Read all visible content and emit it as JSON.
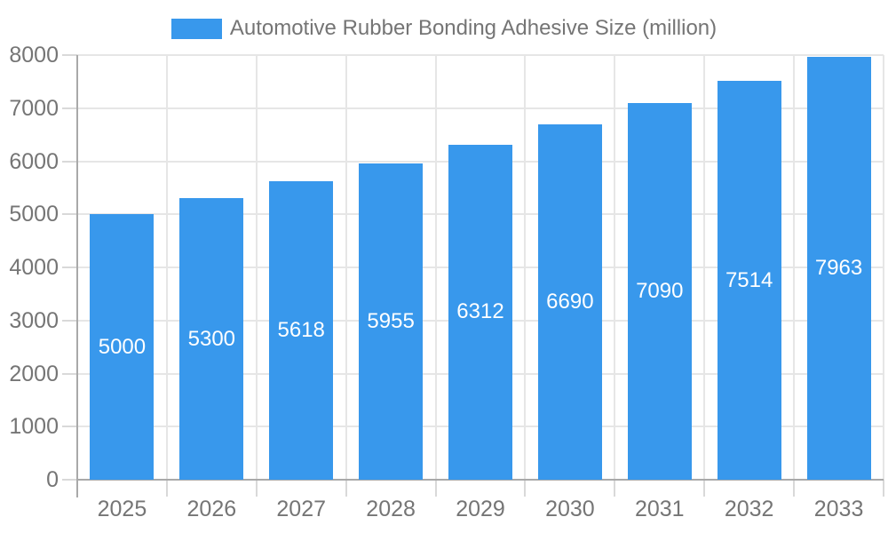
{
  "legend": {
    "label": "Automotive Rubber Bonding Adhesive Size (million)"
  },
  "chart_data": {
    "type": "bar",
    "title": "Automotive Rubber Bonding Adhesive Size (million)",
    "categories": [
      "2025",
      "2026",
      "2027",
      "2028",
      "2029",
      "2030",
      "2031",
      "2032",
      "2033"
    ],
    "values": [
      5000,
      5300,
      5618,
      5955,
      6312,
      6690,
      7090,
      7514,
      7963
    ],
    "xlabel": "",
    "ylabel": "",
    "ylim": [
      0,
      8000
    ],
    "ytick_step": 1000,
    "yticks": [
      0,
      1000,
      2000,
      3000,
      4000,
      5000,
      6000,
      7000,
      8000
    ],
    "grid": true,
    "legend_position": "top",
    "value_labels": "white, centered inside bars"
  },
  "colors": {
    "bar": "#3898ec",
    "grid": "#e6e6e6",
    "tick": "#d9d9d9",
    "axis": "#a9a9a9",
    "axis_text": "#757575",
    "value_label": "#ffffff",
    "background": "#ffffff"
  }
}
